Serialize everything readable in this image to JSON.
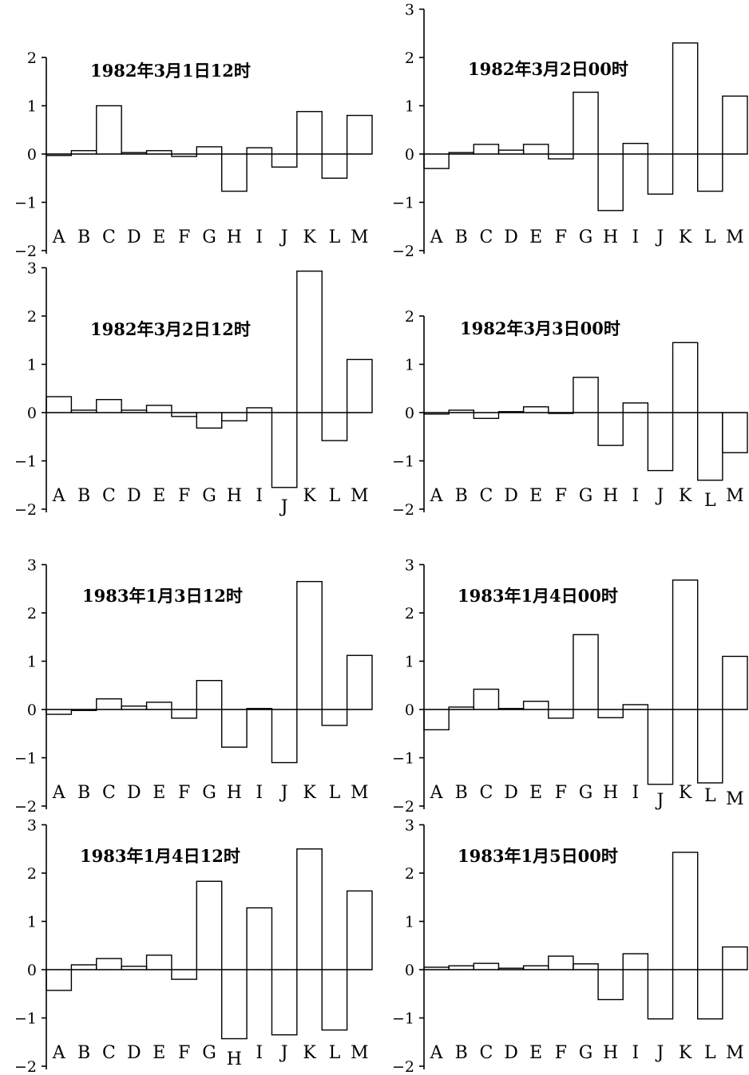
{
  "chart_data": [
    {
      "type": "bar",
      "title": "1982年3月1日12时",
      "categories": [
        "A",
        "B",
        "C",
        "D",
        "E",
        "F",
        "G",
        "H",
        "I",
        "J",
        "K",
        "L",
        "M"
      ],
      "values": [
        -0.03,
        0.07,
        1.0,
        0.03,
        0.07,
        -0.05,
        0.15,
        -0.77,
        0.13,
        -0.27,
        0.88,
        -0.5,
        0.8
      ],
      "ylim": [
        -2,
        2
      ],
      "yticks": [
        "2",
        "1",
        "0",
        "−1",
        "−2"
      ]
    },
    {
      "type": "bar",
      "title": "1982年3月2日00时",
      "categories": [
        "A",
        "B",
        "C",
        "D",
        "E",
        "F",
        "G",
        "H",
        "I",
        "J",
        "K",
        "L",
        "M"
      ],
      "values": [
        -0.3,
        0.03,
        0.2,
        0.08,
        0.2,
        -0.1,
        1.28,
        -1.17,
        0.22,
        -0.83,
        2.3,
        -0.77,
        1.2
      ],
      "ylim": [
        -2,
        3
      ],
      "yticks": [
        "3",
        "2",
        "1",
        "0",
        "−1",
        "−2"
      ]
    },
    {
      "type": "bar",
      "title": "1982年3月2日12时",
      "categories": [
        "A",
        "B",
        "C",
        "D",
        "E",
        "F",
        "G",
        "H",
        "I",
        "J",
        "K",
        "L",
        "M"
      ],
      "values": [
        0.33,
        0.05,
        0.27,
        0.05,
        0.15,
        -0.08,
        -0.32,
        -0.17,
        0.1,
        -1.55,
        2.93,
        -0.58,
        1.1
      ],
      "ylim": [
        -2,
        3
      ],
      "yticks": [
        "3",
        "2",
        "1",
        "0",
        "−1",
        "−2"
      ]
    },
    {
      "type": "bar",
      "title": "1982年3月3日00时",
      "categories": [
        "A",
        "B",
        "C",
        "D",
        "E",
        "F",
        "G",
        "H",
        "I",
        "J",
        "K",
        "L",
        "M"
      ],
      "values": [
        -0.03,
        0.05,
        -0.12,
        0.02,
        0.12,
        0.0,
        0.73,
        -0.68,
        0.2,
        -1.2,
        1.45,
        -1.4,
        -0.83
      ],
      "ylim": [
        -2,
        2
      ],
      "yticks": [
        "2",
        "1",
        "0",
        "−1",
        "−2"
      ]
    },
    {
      "type": "bar",
      "title": "1983年1月3日12时",
      "categories": [
        "A",
        "B",
        "C",
        "D",
        "E",
        "F",
        "G",
        "H",
        "I",
        "J",
        "K",
        "L",
        "M"
      ],
      "values": [
        -0.1,
        -0.02,
        0.22,
        0.07,
        0.15,
        -0.18,
        0.6,
        -0.78,
        0.02,
        -1.1,
        2.65,
        -0.33,
        1.12
      ],
      "ylim": [
        -2,
        3
      ],
      "yticks": [
        "3",
        "2",
        "1",
        "0",
        "−1",
        "−2"
      ]
    },
    {
      "type": "bar",
      "title": "1983年1月4日00时",
      "categories": [
        "A",
        "B",
        "C",
        "D",
        "E",
        "F",
        "G",
        "H",
        "I",
        "J",
        "K",
        "L",
        "M"
      ],
      "values": [
        -0.42,
        0.05,
        0.42,
        0.02,
        0.17,
        -0.18,
        1.55,
        -0.17,
        0.1,
        -1.55,
        2.68,
        -1.52,
        1.1
      ],
      "ylim": [
        -2,
        3
      ],
      "yticks": [
        "3",
        "2",
        "1",
        "0",
        "−1",
        "−2"
      ]
    },
    {
      "type": "bar",
      "title": "1983年1月4日12时",
      "categories": [
        "A",
        "B",
        "C",
        "D",
        "E",
        "F",
        "G",
        "H",
        "I",
        "J",
        "K",
        "L",
        "M"
      ],
      "values": [
        -0.43,
        0.1,
        0.23,
        0.07,
        0.3,
        -0.2,
        1.83,
        -1.43,
        1.28,
        -1.35,
        2.5,
        -1.25,
        1.63
      ],
      "ylim": [
        -2,
        3
      ],
      "yticks": [
        "3",
        "2",
        "1",
        "0",
        "−1",
        "−2"
      ]
    },
    {
      "type": "bar",
      "title": "1983年1月5日00时",
      "categories": [
        "A",
        "B",
        "C",
        "D",
        "E",
        "F",
        "G",
        "H",
        "I",
        "J",
        "K",
        "L",
        "M"
      ],
      "values": [
        0.05,
        0.08,
        0.13,
        0.03,
        0.08,
        0.28,
        0.12,
        -0.62,
        0.33,
        -1.02,
        2.43,
        -1.02,
        0.47
      ],
      "ylim": [
        -2,
        3
      ],
      "yticks": [
        "3",
        "2",
        "1",
        "0",
        "−1",
        "−2"
      ]
    }
  ]
}
